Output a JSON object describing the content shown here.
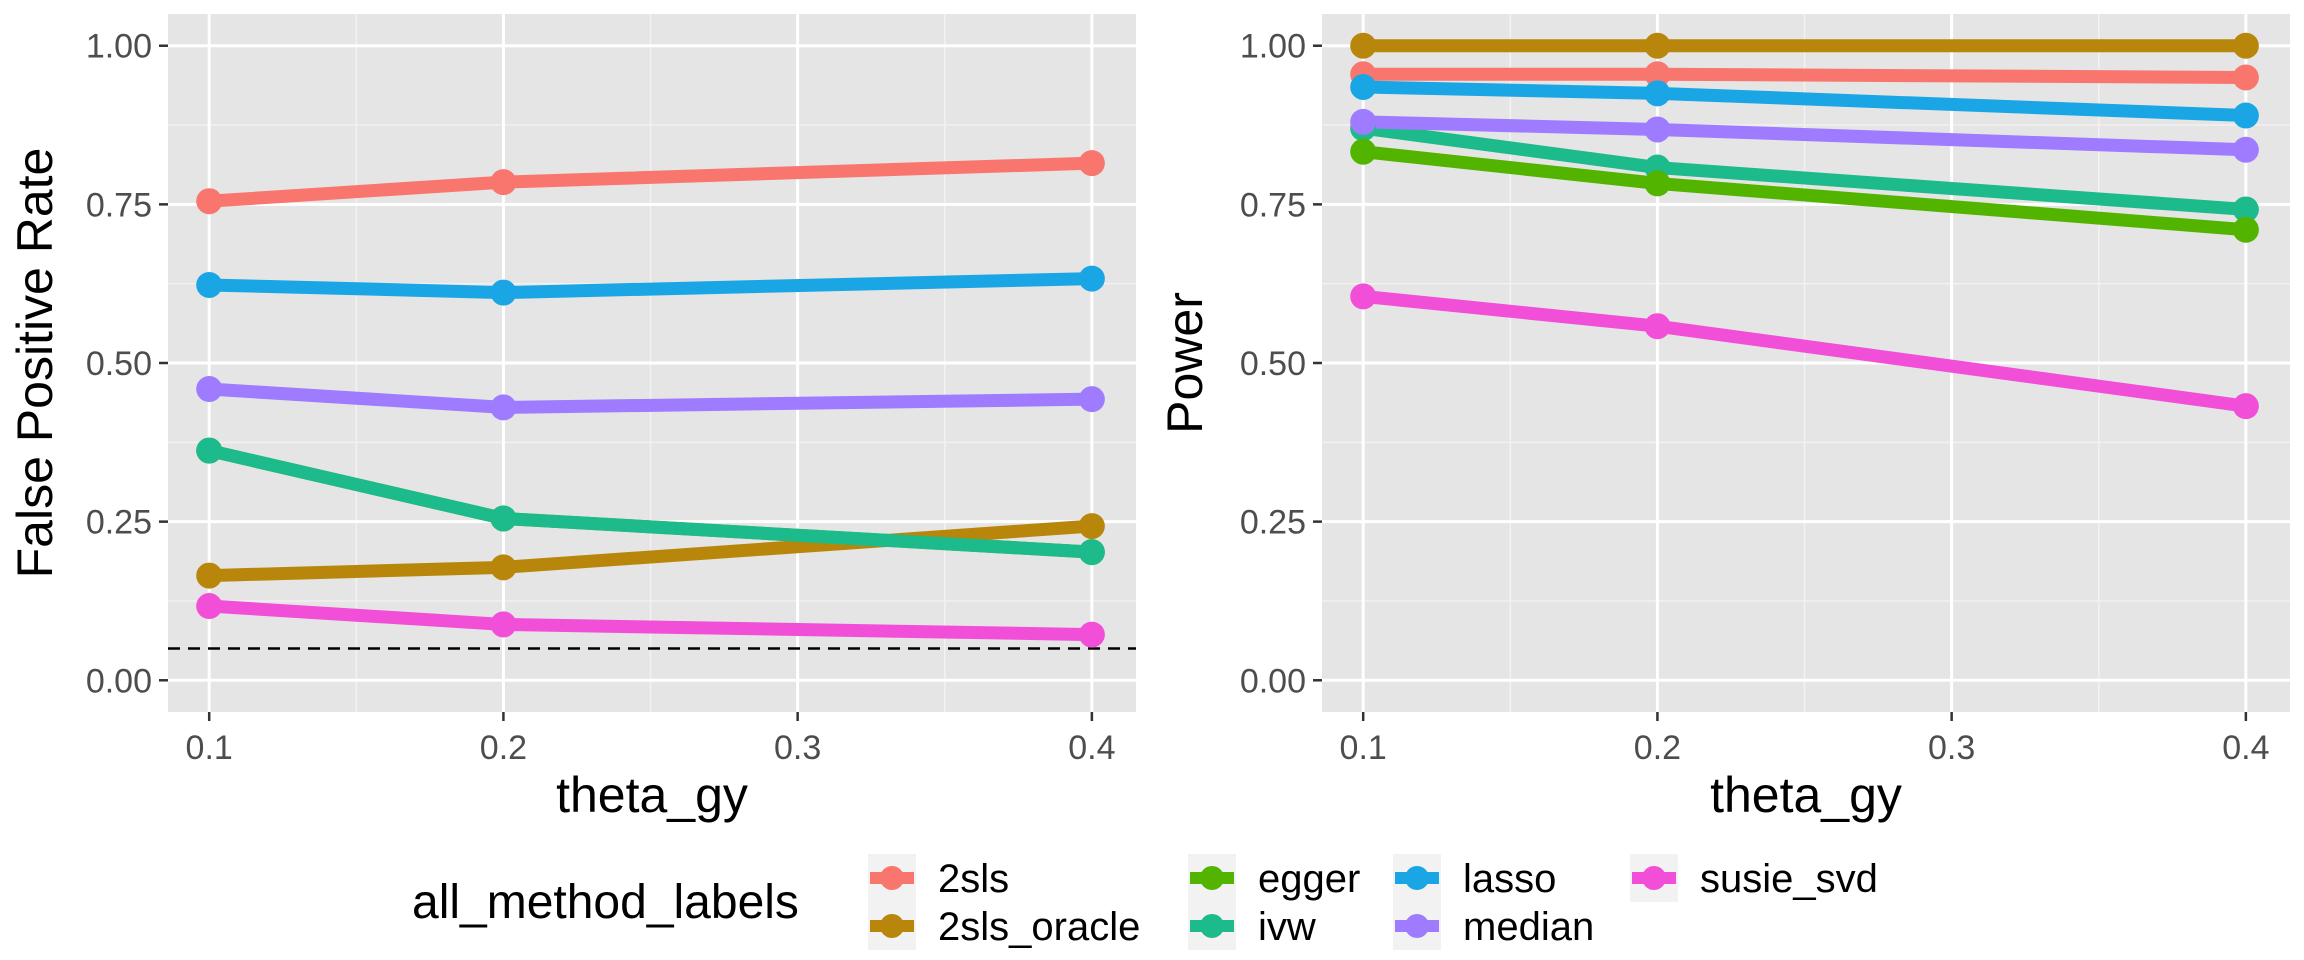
{
  "chart_data": [
    {
      "type": "line",
      "xlabel": "theta_gy",
      "ylabel": "False Positive Rate",
      "x": [
        0.1,
        0.2,
        0.4
      ],
      "xticks": [
        "0.1",
        "0.2",
        "0.3",
        "0.4"
      ],
      "yticks": [
        "0.00",
        "0.25",
        "0.50",
        "0.75",
        "1.00"
      ],
      "xlim": [
        0.086,
        0.415
      ],
      "ylim": [
        -0.05,
        1.05
      ],
      "grid": true,
      "reference_line": {
        "y": 0.05,
        "style": "dashed",
        "color": "#000000"
      },
      "series": [
        {
          "name": "2sls",
          "color": "#F8766D",
          "values": [
            0.755,
            0.785,
            0.815
          ]
        },
        {
          "name": "2sls_oracle",
          "color": "#B8860B",
          "values": [
            0.165,
            0.178,
            0.243
          ]
        },
        {
          "name": "egger",
          "color": "#53B400",
          "values": [
            0.362,
            0.255,
            0.202
          ]
        },
        {
          "name": "ivw",
          "color": "#1DBA8B",
          "values": [
            0.362,
            0.255,
            0.202
          ]
        },
        {
          "name": "lasso",
          "color": "#1AA6E4",
          "values": [
            0.623,
            0.611,
            0.633
          ]
        },
        {
          "name": "median",
          "color": "#9E7BFF",
          "values": [
            0.459,
            0.43,
            0.443
          ]
        },
        {
          "name": "susie_svd",
          "color": "#F24FD8",
          "values": [
            0.117,
            0.088,
            0.072
          ]
        }
      ]
    },
    {
      "type": "line",
      "xlabel": "theta_gy",
      "ylabel": "Power",
      "x": [
        0.1,
        0.2,
        0.4
      ],
      "xticks": [
        "0.1",
        "0.2",
        "0.3",
        "0.4"
      ],
      "yticks": [
        "0.00",
        "0.25",
        "0.50",
        "0.75",
        "1.00"
      ],
      "xlim": [
        0.086,
        0.415
      ],
      "ylim": [
        -0.05,
        1.05
      ],
      "grid": true,
      "series": [
        {
          "name": "2sls",
          "color": "#F8766D",
          "values": [
            0.955,
            0.955,
            0.95
          ]
        },
        {
          "name": "2sls_oracle",
          "color": "#B8860B",
          "values": [
            1.0,
            1.0,
            1.0
          ]
        },
        {
          "name": "ivw",
          "color": "#1DBA8B",
          "values": [
            0.87,
            0.808,
            0.742
          ]
        },
        {
          "name": "egger",
          "color": "#53B400",
          "values": [
            0.833,
            0.783,
            0.71
          ]
        },
        {
          "name": "lasso",
          "color": "#1AA6E4",
          "values": [
            0.935,
            0.925,
            0.89
          ]
        },
        {
          "name": "median",
          "color": "#9E7BFF",
          "values": [
            0.88,
            0.868,
            0.836
          ]
        },
        {
          "name": "susie_svd",
          "color": "#F24FD8",
          "values": [
            0.605,
            0.558,
            0.432
          ]
        }
      ]
    }
  ],
  "legend": {
    "title": "all_method_labels",
    "position": "bottom",
    "entries": [
      {
        "label": "2sls",
        "color": "#F8766D"
      },
      {
        "label": "2sls_oracle",
        "color": "#B8860B"
      },
      {
        "label": "egger",
        "color": "#53B400"
      },
      {
        "label": "ivw",
        "color": "#1DBA8B"
      },
      {
        "label": "lasso",
        "color": "#1AA6E4"
      },
      {
        "label": "median",
        "color": "#9E7BFF"
      },
      {
        "label": "susie_svd",
        "color": "#F24FD8"
      }
    ]
  }
}
